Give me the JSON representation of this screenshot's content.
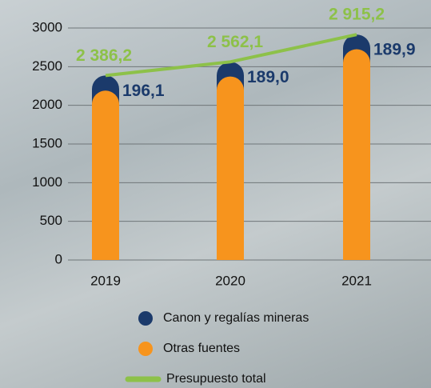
{
  "chart_data": {
    "type": "bar",
    "stacked": true,
    "categories": [
      "2019",
      "2020",
      "2021"
    ],
    "series": [
      {
        "name": "Canon y regalías mineras",
        "color": "#1b3a6b",
        "values": [
          196.1,
          189.0,
          189.9
        ],
        "value_labels": [
          "196,1",
          "189,0",
          "189,9"
        ]
      },
      {
        "name": "Otras fuentes",
        "color": "#f7941d",
        "values": [
          2190.1,
          2373.1,
          2725.3
        ]
      }
    ],
    "line": {
      "name": "Presupuesto total",
      "color": "#8dc149",
      "values": [
        2386.2,
        2562.1,
        2915.2
      ],
      "value_labels": [
        "2 386,2",
        "2 562,1",
        "2 915,2"
      ]
    },
    "ylim": [
      0,
      3000
    ],
    "yticks": [
      0,
      500,
      1000,
      1500,
      2000,
      2500,
      3000
    ],
    "grid": true
  }
}
